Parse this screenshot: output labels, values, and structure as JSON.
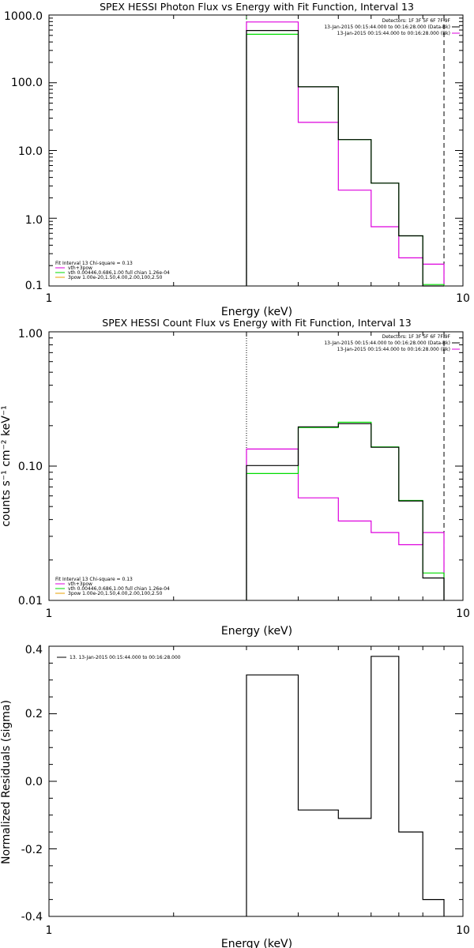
{
  "colors": {
    "total": "#000000",
    "fit": "#00dd00",
    "background": "#dd00dd",
    "component": "#e8a200",
    "axes": "#000000"
  },
  "chart_data": [
    {
      "type": "line",
      "title": "SPEX HESSI Photon Flux vs Energy with Fit Function, Interval 13",
      "xlabel": "Energy (keV)",
      "ylabel": "",
      "xscale": "log",
      "yscale": "log",
      "xlim": [
        1,
        10
      ],
      "ylim": [
        0.1,
        1000
      ],
      "xticks": [
        "1",
        "10"
      ],
      "yticks": [
        "0.1",
        "1.0",
        "10.0",
        "100.0",
        "1000.0"
      ],
      "x_edges": [
        3,
        4,
        5,
        6,
        7,
        8,
        9
      ],
      "series": [
        {
          "name": "data",
          "color": "#000000",
          "values": [
            590,
            87,
            14.5,
            3.3,
            0.55,
            0.097
          ]
        },
        {
          "name": "vth+3pow",
          "color": "#00dd00",
          "values": [
            520,
            87,
            14.5,
            3.3,
            0.55,
            0.105
          ]
        },
        {
          "name": "bk",
          "color": "#dd00dd",
          "values": [
            790,
            26,
            2.6,
            0.75,
            0.26,
            0.21
          ]
        }
      ],
      "vlines": [
        {
          "x": 3,
          "style": "dotted",
          "color": "#00dd00"
        },
        {
          "x": 9,
          "style": "dashed",
          "color": "#000000"
        }
      ],
      "legend_right": [
        {
          "text": "Detectors: 1F 3F 5F 6F 7F 9F",
          "color": ""
        },
        {
          "text": "13-Jan-2015 00:15:44.000 to 00:16:28.000 (Data-Bk)",
          "color": "#000000"
        },
        {
          "text": "13-Jan-2015 00:15:44.000 to 00:16:28.000 (Bk)",
          "color": "#dd00dd"
        }
      ],
      "legend_left": [
        {
          "text": "Fit Interval 13   Chi-square = 0.13",
          "color": ""
        },
        {
          "text": "vth+3pow",
          "color": "#dd00dd"
        },
        {
          "text": "vth 0.00446,0.686,1.00  full chian 1.26e-04",
          "color": "#00dd00"
        },
        {
          "text": "3pow 1.00e-20,1.50,4.00,2.00,100,2.50",
          "color": "#e8a200"
        }
      ]
    },
    {
      "type": "line",
      "title": "SPEX HESSI Count Flux vs Energy with Fit Function, Interval 13",
      "xlabel": "Energy (keV)",
      "ylabel": "counts s⁻¹ cm⁻² keV⁻¹",
      "xscale": "log",
      "yscale": "log",
      "xlim": [
        1,
        10
      ],
      "ylim": [
        0.01,
        1.0
      ],
      "xticks": [
        "1",
        "10"
      ],
      "yticks": [
        "0.01",
        "0.10",
        "1.00"
      ],
      "x_edges": [
        3,
        4,
        5,
        6,
        7,
        8,
        9
      ],
      "series": [
        {
          "name": "data",
          "color": "#000000",
          "values": [
            0.101,
            0.196,
            0.207,
            0.138,
            0.055,
            0.0147
          ]
        },
        {
          "name": "vth+3pow",
          "color": "#00dd00",
          "values": [
            0.088,
            0.194,
            0.212,
            0.139,
            0.0555,
            0.016
          ]
        },
        {
          "name": "bk",
          "color": "#dd00dd",
          "values": [
            0.134,
            0.058,
            0.039,
            0.032,
            0.026,
            0.032
          ]
        }
      ],
      "vlines": [
        {
          "x": 3,
          "style": "dotted",
          "color": "#000000"
        },
        {
          "x": 9,
          "style": "dashed",
          "color": "#000000"
        }
      ],
      "legend_right": [
        {
          "text": "Detectors: 1F 3F 5F 6F 7F 9F",
          "color": ""
        },
        {
          "text": "13-Jan-2015 00:15:44.000 to 00:16:28.000 (Data-Bk)",
          "color": "#000000"
        },
        {
          "text": "13-Jan-2015 00:15:44.000 to 00:16:28.000 (Bk)",
          "color": "#dd00dd"
        }
      ],
      "legend_left": [
        {
          "text": "Fit Interval 13   Chi-square = 0.13",
          "color": ""
        },
        {
          "text": "vth+3pow",
          "color": "#dd00dd"
        },
        {
          "text": "vth 0.00446,0.686,1.00  full chian 1.26e-04",
          "color": "#00dd00"
        },
        {
          "text": "3pow 1.00e-20,1.50,4.00,2.00,100,2.50",
          "color": "#e8a200"
        }
      ]
    },
    {
      "type": "line",
      "title": "",
      "xlabel": "Energy (keV)",
      "ylabel": "Normalized Residuals (sigma)",
      "xscale": "log",
      "yscale": "linear",
      "xlim": [
        1,
        10
      ],
      "ylim": [
        -0.4,
        0.4
      ],
      "xticks": [
        "1",
        "10"
      ],
      "yticks": [
        "-0.4",
        "-0.2",
        "0.0",
        "0.2",
        "0.4"
      ],
      "x_edges": [
        3,
        4,
        5,
        6,
        7,
        8,
        9
      ],
      "series": [
        {
          "name": "",
          "color": "#000000",
          "values": [
            0.315,
            -0.085,
            -0.11,
            0.37,
            -0.15,
            -0.35
          ]
        }
      ],
      "vlines": [],
      "legend_right": [],
      "legend_left": [],
      "legend_top": [
        {
          "text": "13. 13-Jan-2015 00:15:44.000 to 00:16:28.000",
          "color": "#000000"
        }
      ]
    }
  ]
}
